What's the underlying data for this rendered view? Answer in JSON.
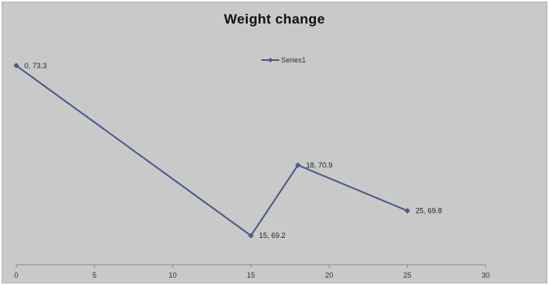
{
  "chart_data": {
    "type": "scatter",
    "title": "Weight  change",
    "xlabel": "",
    "ylabel": "",
    "xlim": [
      0,
      30
    ],
    "x_ticks": [
      0,
      5,
      10,
      15,
      20,
      25,
      30
    ],
    "ylim": [
      68.5,
      74.0
    ],
    "y_axis_visible": false,
    "grid": false,
    "legend": "top-center",
    "series": [
      {
        "name": "Series1",
        "color": "#4a5a8c",
        "marker": "diamond",
        "lines": true,
        "x": [
          0,
          15,
          18,
          25
        ],
        "y": [
          73.3,
          69.2,
          70.9,
          69.8
        ],
        "labels": [
          "0, 73.3",
          "15, 69.2",
          "18, 70.9",
          "25, 69.8"
        ]
      }
    ]
  }
}
